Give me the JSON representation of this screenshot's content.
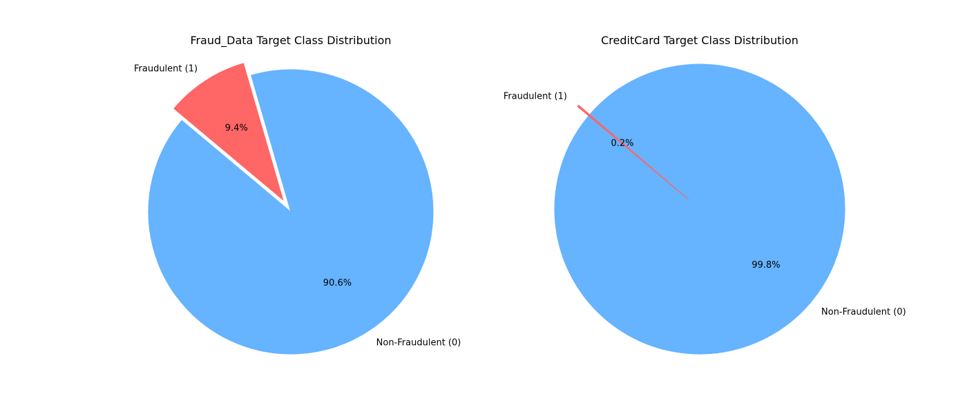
{
  "chart_data": [
    {
      "type": "pie",
      "title": "Fraud_Data Target Class Distribution",
      "slices": [
        {
          "label": "Non-Fraudulent (0)",
          "value": 90.6,
          "pct_label": "90.6%",
          "color": "#66b3ff",
          "explode": false
        },
        {
          "label": "Fraudulent (1)",
          "value": 9.4,
          "pct_label": "9.4%",
          "color": "#ff6666",
          "explode": true
        }
      ]
    },
    {
      "type": "pie",
      "title": "CreditCard Target Class Distribution",
      "slices": [
        {
          "label": "Non-Fraudulent (0)",
          "value": 99.8,
          "pct_label": "99.8%",
          "color": "#66b3ff",
          "explode": false
        },
        {
          "label": "Fraudulent (1)",
          "value": 0.2,
          "pct_label": "0.2%",
          "color": "#ff6666",
          "explode": true
        }
      ]
    }
  ]
}
